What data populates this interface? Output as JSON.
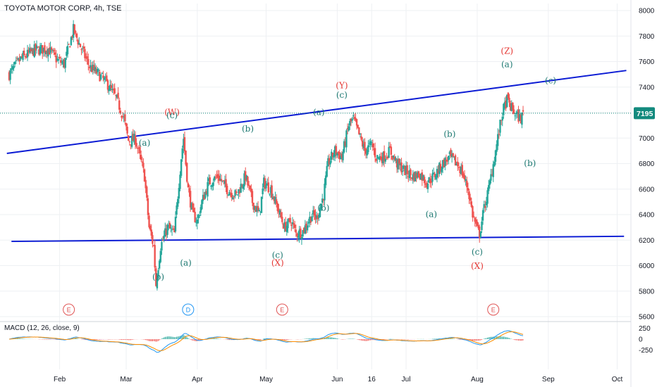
{
  "title": {
    "symbol": "TOYOTA MOTOR CORP",
    "timeframe": "4h",
    "exchange": "TSE",
    "text": "TOYOTA MOTOR CORP, 4h, TSE"
  },
  "macd": {
    "label": "MACD (12, 26, close, 9)",
    "ticks": [
      "250",
      "0",
      "-250"
    ],
    "tick_values": [
      250,
      0,
      -250
    ]
  },
  "colors": {
    "up": "#26a69a",
    "down": "#ef5350",
    "trendline": "#0b1bd4",
    "wave_red": "#e53935",
    "wave_teal": "#1f7a73",
    "event_red": "#e05555",
    "event_blue": "#2196f3",
    "macd_line": "#2196f3",
    "signal_line": "#ff8c00",
    "grid": "#eef0f3",
    "price_tag": "#138a7e"
  },
  "chart_data": {
    "type": "candlestick",
    "price_axis": {
      "ticks": [
        "8000",
        "7800",
        "7600",
        "7400",
        "7200",
        "7000",
        "6800",
        "6600",
        "6400",
        "6200",
        "6000",
        "5800",
        "5600"
      ],
      "range": [
        5600,
        8000
      ]
    },
    "last_price": "7195",
    "last_price_value": 7195,
    "time_axis": {
      "labels": [
        "Feb",
        "Mar",
        "Apr",
        "May",
        "Jun",
        "16",
        "Jul",
        "Aug",
        "Sep",
        "Oct"
      ],
      "positions_day": [
        31,
        60,
        91,
        121,
        152,
        167,
        182,
        213,
        244,
        274
      ],
      "range_day": [
        9,
        280
      ]
    },
    "close_path": [
      [
        9,
        7500
      ],
      [
        14,
        7620
      ],
      [
        20,
        7690
      ],
      [
        26,
        7700
      ],
      [
        30,
        7610
      ],
      [
        33,
        7580
      ],
      [
        37,
        7850
      ],
      [
        40,
        7720
      ],
      [
        44,
        7560
      ],
      [
        48,
        7500
      ],
      [
        52,
        7420
      ],
      [
        56,
        7300
      ],
      [
        59,
        7150
      ],
      [
        61,
        6980
      ],
      [
        64,
        6990
      ],
      [
        66,
        6850
      ],
      [
        68,
        6700
      ],
      [
        70,
        6300
      ],
      [
        72,
        6150
      ],
      [
        73,
        5850
      ],
      [
        75,
        6150
      ],
      [
        78,
        6300
      ],
      [
        81,
        6250
      ],
      [
        84,
        6850
      ],
      [
        85,
        7000
      ],
      [
        87,
        6600
      ],
      [
        89,
        6400
      ],
      [
        91,
        6350
      ],
      [
        93,
        6500
      ],
      [
        96,
        6650
      ],
      [
        100,
        6700
      ],
      [
        104,
        6600
      ],
      [
        108,
        6550
      ],
      [
        112,
        6700
      ],
      [
        115,
        6500
      ],
      [
        118,
        6400
      ],
      [
        120,
        6650
      ],
      [
        123,
        6600
      ],
      [
        126,
        6450
      ],
      [
        129,
        6300
      ],
      [
        132,
        6350
      ],
      [
        134,
        6250
      ],
      [
        137,
        6270
      ],
      [
        141,
        6400
      ],
      [
        143,
        6370
      ],
      [
        146,
        6550
      ],
      [
        148,
        6800
      ],
      [
        151,
        6900
      ],
      [
        154,
        6850
      ],
      [
        157,
        7100
      ],
      [
        159,
        7150
      ],
      [
        161,
        7050
      ],
      [
        164,
        6900
      ],
      [
        167,
        6950
      ],
      [
        169,
        6850
      ],
      [
        172,
        6850
      ],
      [
        175,
        6900
      ],
      [
        178,
        6800
      ],
      [
        181,
        6750
      ],
      [
        185,
        6700
      ],
      [
        188,
        6720
      ],
      [
        191,
        6650
      ],
      [
        194,
        6700
      ],
      [
        198,
        6800
      ],
      [
        201,
        6850
      ],
      [
        204,
        6800
      ],
      [
        206,
        6750
      ],
      [
        209,
        6600
      ],
      [
        211,
        6400
      ],
      [
        213,
        6280
      ],
      [
        214,
        6250
      ],
      [
        216,
        6450
      ],
      [
        218,
        6600
      ],
      [
        220,
        6800
      ],
      [
        222,
        7000
      ],
      [
        224,
        7200
      ],
      [
        226,
        7300
      ],
      [
        228,
        7230
      ],
      [
        230,
        7180
      ],
      [
        232,
        7150
      ],
      [
        233,
        7195
      ]
    ],
    "trendlines": [
      {
        "name": "upper",
        "from": [
          8,
          6880
        ],
        "to": [
          278,
          7530
        ]
      },
      {
        "name": "lower",
        "from": [
          10,
          6190
        ],
        "to": [
          277,
          6230
        ]
      }
    ],
    "wave_labels": [
      {
        "text": "(W)",
        "day": 80,
        "price": 7180,
        "color": "red"
      },
      {
        "text": "(c)",
        "day": 80,
        "price": 7155,
        "color": "teal"
      },
      {
        "text": "(a)",
        "day": 68,
        "price": 6940,
        "color": "teal"
      },
      {
        "text": "(b)",
        "day": 74,
        "price": 5890,
        "color": "teal"
      },
      {
        "text": "(a)",
        "day": 86,
        "price": 6000,
        "color": "teal"
      },
      {
        "text": "(b)",
        "day": 113,
        "price": 7050,
        "color": "teal"
      },
      {
        "text": "(c)",
        "day": 126,
        "price": 6060,
        "color": "teal"
      },
      {
        "text": "(X)",
        "day": 126,
        "price": 6000,
        "color": "red"
      },
      {
        "text": "(b)",
        "day": 146,
        "price": 6430,
        "color": "teal"
      },
      {
        "text": "(a)",
        "day": 144,
        "price": 7180,
        "color": "teal"
      },
      {
        "text": "(Y)",
        "day": 154,
        "price": 7390,
        "color": "red"
      },
      {
        "text": "(c)",
        "day": 154,
        "price": 7315,
        "color": "teal"
      },
      {
        "text": "(b)",
        "day": 201,
        "price": 7010,
        "color": "teal"
      },
      {
        "text": "(a)",
        "day": 193,
        "price": 6380,
        "color": "teal"
      },
      {
        "text": "(c)",
        "day": 213,
        "price": 6085,
        "color": "teal"
      },
      {
        "text": "(X)",
        "day": 213,
        "price": 5975,
        "color": "red"
      },
      {
        "text": "(Z)",
        "day": 226,
        "price": 7660,
        "color": "red"
      },
      {
        "text": "(a)",
        "day": 226,
        "price": 7555,
        "color": "teal"
      },
      {
        "text": "(c)",
        "day": 245,
        "price": 7430,
        "color": "teal"
      },
      {
        "text": "(b)",
        "day": 236,
        "price": 6780,
        "color": "teal"
      }
    ],
    "events": [
      {
        "text": "E",
        "day": 35,
        "color": "red"
      },
      {
        "text": "D",
        "day": 87,
        "color": "blue"
      },
      {
        "text": "E",
        "day": 128,
        "color": "red"
      },
      {
        "text": "E",
        "day": 220,
        "color": "red"
      }
    ]
  }
}
